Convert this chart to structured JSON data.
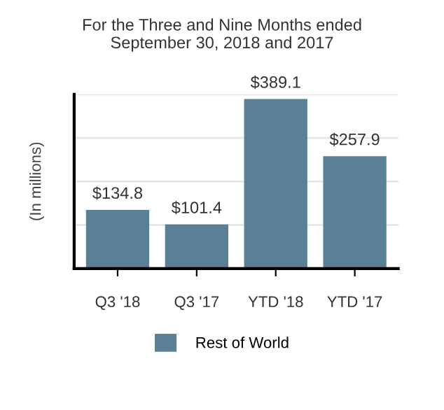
{
  "chart_data": {
    "type": "bar",
    "title": "For the Three and Nine Months ended\nSeptember 30, 2018 and 2017",
    "ylabel": "(In millions)",
    "categories": [
      "Q3 '18",
      "Q3 '17",
      "YTD '18",
      "YTD '17"
    ],
    "series": [
      {
        "name": "Rest of World",
        "color": "#5a8096",
        "values": [
          134.8,
          101.4,
          389.1,
          257.9
        ],
        "value_labels": [
          "$134.8",
          "$101.4",
          "$389.1",
          "$257.9"
        ]
      }
    ],
    "ylim": [
      0,
      400
    ],
    "yticks": [
      {
        "value": 100,
        "label": null
      },
      {
        "value": 200,
        "label": null
      },
      {
        "value": 300,
        "label": null
      },
      {
        "value": 400,
        "label": null
      }
    ],
    "grid": "y",
    "legend": "bottom"
  }
}
